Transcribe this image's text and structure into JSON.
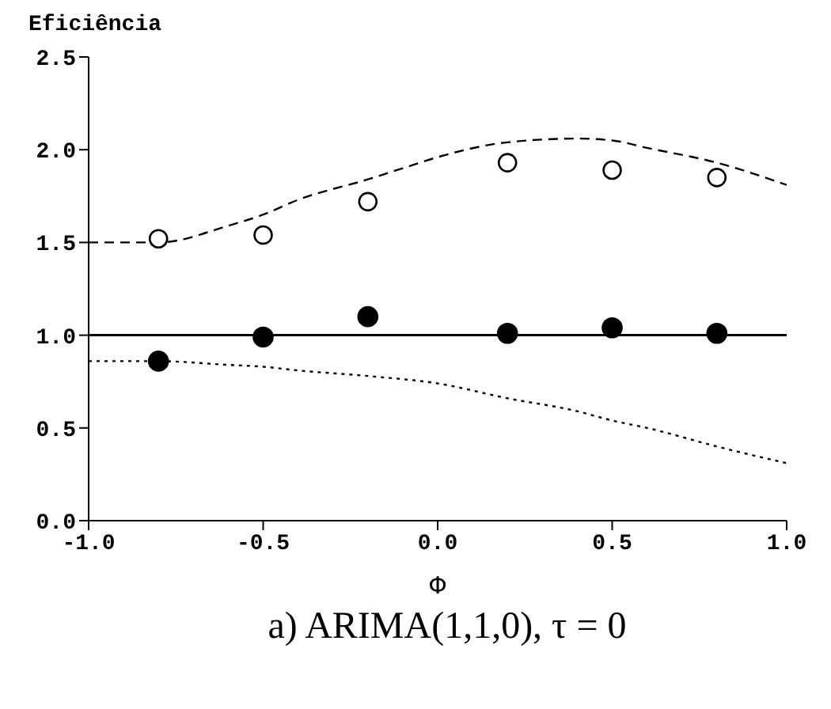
{
  "chart_data": {
    "type": "scatter",
    "title": "a) ARIMA(1,1,0), τ = 0",
    "xlabel": "Φ",
    "ylabel": "Eficiência",
    "xlim": [
      -1.0,
      1.0
    ],
    "xticks": [
      {
        "value": -1.0,
        "label": "-1.0"
      },
      {
        "value": -0.5,
        "label": "-0.5"
      },
      {
        "value": 0,
        "label": "0.0"
      },
      {
        "value": 0.5,
        "label": "0.5"
      },
      {
        "value": 1.0,
        "label": "1.0"
      }
    ],
    "ylim": [
      0,
      2.5
    ],
    "yticks": [
      {
        "value": 0,
        "label": "0.0"
      },
      {
        "value": 0.5,
        "label": "0.5"
      },
      {
        "value": 1.0,
        "label": "1.0"
      },
      {
        "value": 1.5,
        "label": "1.5"
      },
      {
        "value": 2.0,
        "label": "2.0"
      },
      {
        "value": 2.5,
        "label": "2.5"
      }
    ],
    "grid": false,
    "legend": false,
    "marker": "circle",
    "ref_lines": [
      {
        "axis": "y",
        "value": 1.0,
        "color": "#000000",
        "line_style": "solid"
      }
    ],
    "series": [
      {
        "color": "#000000",
        "x": [
          -0.8,
          -0.5,
          -0.2,
          0.2,
          0.5,
          0.8
        ],
        "values": [
          1.52,
          1.54,
          1.72,
          1.93,
          1.89,
          1.85
        ]
      },
      {
        "color": "#000000",
        "x": [
          -0.8,
          -0.5,
          -0.2,
          0.2,
          0.5,
          0.8
        ],
        "values": [
          0.86,
          0.99,
          1.1,
          1.01,
          1.04,
          1.01
        ]
      },
      {
        "type": "line",
        "color": "#000000",
        "line_style": "dashed",
        "marker": "none",
        "x": [
          -1.0,
          -0.8,
          -0.6,
          -0.5,
          -0.4,
          -0.2,
          -0.1,
          0,
          0.2,
          0.4,
          0.5,
          0.6,
          0.8,
          1.0
        ],
        "values": [
          1.5,
          1.5,
          1.59,
          1.65,
          1.73,
          1.84,
          1.9,
          1.96,
          2.04,
          2.06,
          2.05,
          2.01,
          1.93,
          1.81
        ]
      },
      {
        "type": "line",
        "color": "#000000",
        "line_style": "dotted",
        "marker": "none",
        "x": [
          -1.0,
          -0.8,
          -0.6,
          -0.5,
          -0.4,
          -0.2,
          0,
          0.2,
          0.4,
          0.5,
          0.6,
          0.8,
          1.0
        ],
        "values": [
          0.86,
          0.86,
          0.84,
          0.83,
          0.81,
          0.78,
          0.74,
          0.66,
          0.59,
          0.54,
          0.5,
          0.4,
          0.31
        ]
      }
    ]
  }
}
